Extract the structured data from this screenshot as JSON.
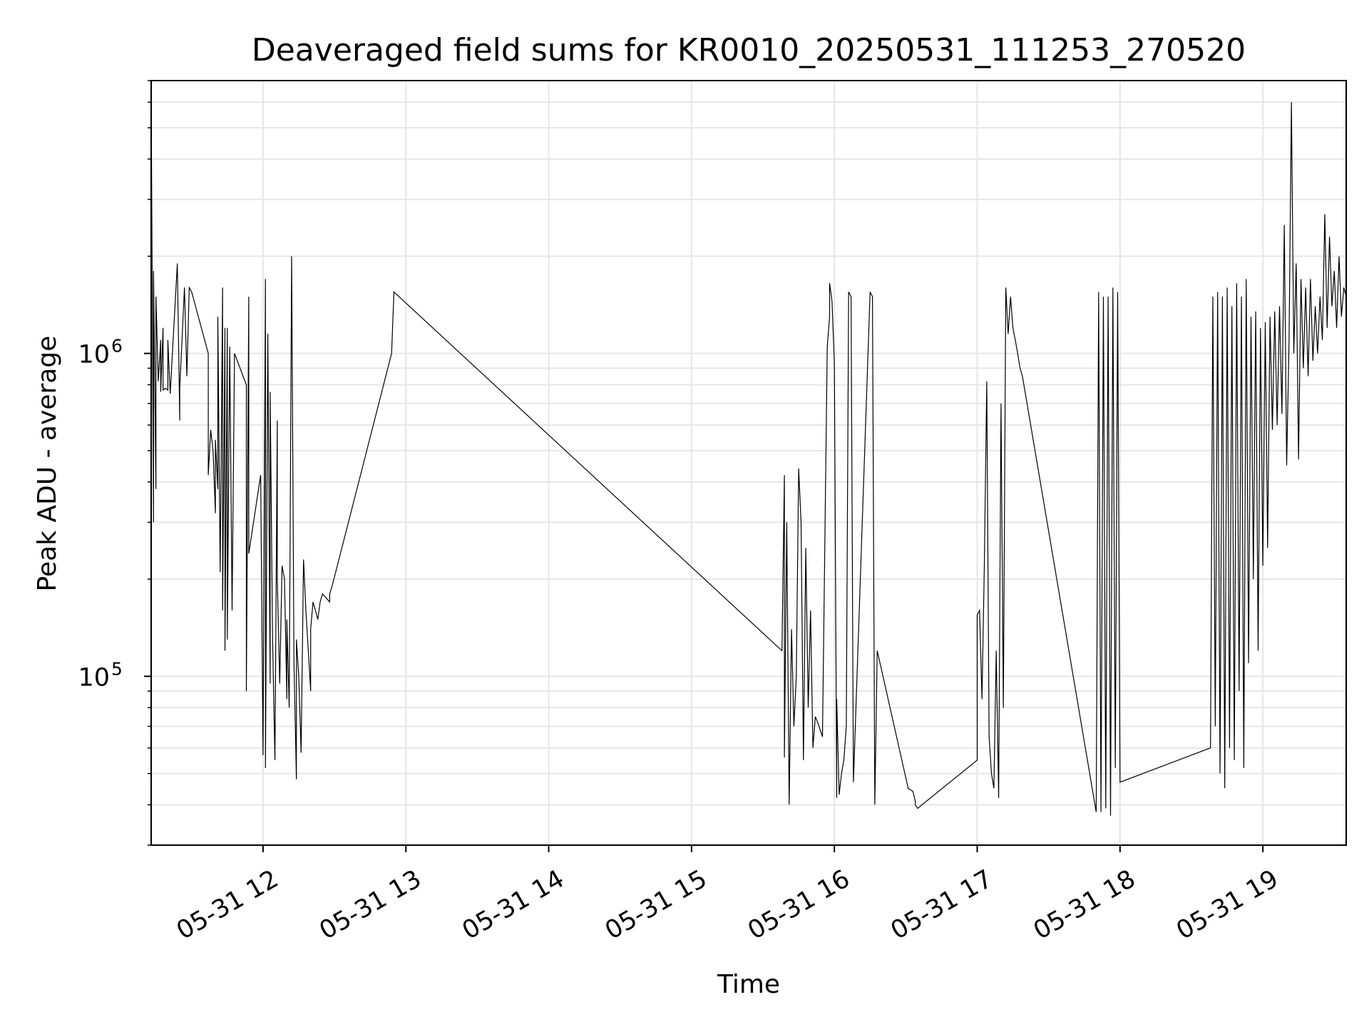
{
  "chart_data": {
    "type": "line",
    "title": "Deaveraged field sums for KR0010_20250531_111253_270520",
    "xlabel": "Time",
    "ylabel": "Peak ADU - average",
    "yscale": "log",
    "ylim": [
      30000,
      7000000
    ],
    "xlim": [
      "2025-05-31 11:13",
      "2025-05-31 19:35"
    ],
    "grid": true,
    "line_color": "#000000",
    "grid_color": "#e6e6e6",
    "x_ticks": [
      {
        "time": "2025-05-31 12:00",
        "label": "05-31 12"
      },
      {
        "time": "2025-05-31 13:00",
        "label": "05-31 13"
      },
      {
        "time": "2025-05-31 14:00",
        "label": "05-31 14"
      },
      {
        "time": "2025-05-31 15:00",
        "label": "05-31 15"
      },
      {
        "time": "2025-05-31 16:00",
        "label": "05-31 16"
      },
      {
        "time": "2025-05-31 17:00",
        "label": "05-31 17"
      },
      {
        "time": "2025-05-31 18:00",
        "label": "05-31 18"
      },
      {
        "time": "2025-05-31 19:00",
        "label": "05-31 19"
      }
    ],
    "y_ticks": [
      {
        "value": 100000,
        "base": "10",
        "exp": "5"
      },
      {
        "value": 1000000,
        "base": "10",
        "exp": "6"
      }
    ],
    "series": [
      {
        "x": [
          "2025-05-31 11:13",
          "2025-05-31 11:13",
          "2025-05-31 11:14",
          "2025-05-31 11:14",
          "2025-05-31 11:15",
          "2025-05-31 11:15",
          "2025-05-31 11:16",
          "2025-05-31 11:17",
          "2025-05-31 11:17",
          "2025-05-31 11:18",
          "2025-05-31 11:18",
          "2025-05-31 11:19",
          "2025-05-31 11:20",
          "2025-05-31 11:20",
          "2025-05-31 11:21",
          "2025-05-31 11:24",
          "2025-05-31 11:25",
          "2025-05-31 11:25",
          "2025-05-31 11:27",
          "2025-05-31 11:28",
          "2025-05-31 11:29",
          "2025-05-31 11:30",
          "2025-05-31 11:37",
          "2025-05-31 11:37",
          "2025-05-31 11:38",
          "2025-05-31 11:39",
          "2025-05-31 11:40",
          "2025-05-31 11:40",
          "2025-05-31 11:41",
          "2025-05-31 11:41",
          "2025-05-31 11:42",
          "2025-05-31 11:43",
          "2025-05-31 11:43",
          "2025-05-31 11:44",
          "2025-05-31 11:44",
          "2025-05-31 11:45",
          "2025-05-31 11:45",
          "2025-05-31 11:46",
          "2025-05-31 11:47",
          "2025-05-31 11:48",
          "2025-05-31 11:53",
          "2025-05-31 11:53",
          "2025-05-31 11:54",
          "2025-05-31 11:54",
          "2025-05-31 11:59",
          "2025-05-31 12:00",
          "2025-05-31 12:01",
          "2025-05-31 12:01",
          "2025-05-31 12:02",
          "2025-05-31 12:03",
          "2025-05-31 12:03",
          "2025-05-31 12:04",
          "2025-05-31 12:05",
          "2025-05-31 12:06",
          "2025-05-31 12:06",
          "2025-05-31 12:07",
          "2025-05-31 12:08",
          "2025-05-31 12:09",
          "2025-05-31 12:10",
          "2025-05-31 12:10",
          "2025-05-31 12:11",
          "2025-05-31 12:12",
          "2025-05-31 12:13",
          "2025-05-31 12:14",
          "2025-05-31 12:14",
          "2025-05-31 12:15",
          "2025-05-31 12:16",
          "2025-05-31 12:17",
          "2025-05-31 12:18",
          "2025-05-31 12:19",
          "2025-05-31 12:20",
          "2025-05-31 12:20",
          "2025-05-31 12:21",
          "2025-05-31 12:22",
          "2025-05-31 12:23",
          "2025-05-31 12:24",
          "2025-05-31 12:25",
          "2025-05-31 12:28",
          "2025-05-31 12:28",
          "2025-05-31 12:29",
          "2025-05-31 12:54",
          "2025-05-31 12:55",
          "2025-05-31 15:38",
          "2025-05-31 15:39",
          "2025-05-31 15:39",
          "2025-05-31 15:40",
          "2025-05-31 15:41",
          "2025-05-31 15:42",
          "2025-05-31 15:43",
          "2025-05-31 15:44",
          "2025-05-31 15:45",
          "2025-05-31 15:46",
          "2025-05-31 15:47",
          "2025-05-31 15:48",
          "2025-05-31 15:49",
          "2025-05-31 15:50",
          "2025-05-31 15:51",
          "2025-05-31 15:52",
          "2025-05-31 15:53",
          "2025-05-31 15:55",
          "2025-05-31 15:57",
          "2025-05-31 15:58",
          "2025-05-31 15:58",
          "2025-05-31 15:59",
          "2025-05-31 16:00",
          "2025-05-31 16:01",
          "2025-05-31 16:01",
          "2025-05-31 16:02",
          "2025-05-31 16:03",
          "2025-05-31 16:04",
          "2025-05-31 16:05",
          "2025-05-31 16:06",
          "2025-05-31 16:07",
          "2025-05-31 16:08",
          "2025-05-31 16:15",
          "2025-05-31 16:16",
          "2025-05-31 16:17",
          "2025-05-31 16:18",
          "2025-05-31 16:31",
          "2025-05-31 16:33",
          "2025-05-31 16:34",
          "2025-05-31 16:34",
          "2025-05-31 16:35",
          "2025-05-31 17:00",
          "2025-05-31 17:00",
          "2025-05-31 17:01",
          "2025-05-31 17:02",
          "2025-05-31 17:03",
          "2025-05-31 17:04",
          "2025-05-31 17:05",
          "2025-05-31 17:06",
          "2025-05-31 17:07",
          "2025-05-31 17:08",
          "2025-05-31 17:09",
          "2025-05-31 17:10",
          "2025-05-31 17:11",
          "2025-05-31 17:12",
          "2025-05-31 17:13",
          "2025-05-31 17:14",
          "2025-05-31 17:15",
          "2025-05-31 17:16",
          "2025-05-31 17:17",
          "2025-05-31 17:18",
          "2025-05-31 17:19",
          "2025-05-31 17:50",
          "2025-05-31 17:51",
          "2025-05-31 17:52",
          "2025-05-31 17:53",
          "2025-05-31 17:54",
          "2025-05-31 17:55",
          "2025-05-31 17:56",
          "2025-05-31 17:57",
          "2025-05-31 17:58",
          "2025-05-31 17:59",
          "2025-05-31 18:00",
          "2025-05-31 18:00",
          "2025-05-31 18:38",
          "2025-05-31 18:39",
          "2025-05-31 18:40",
          "2025-05-31 18:41",
          "2025-05-31 18:42",
          "2025-05-31 18:43",
          "2025-05-31 18:44",
          "2025-05-31 18:45",
          "2025-05-31 18:46",
          "2025-05-31 18:47",
          "2025-05-31 18:48",
          "2025-05-31 18:49",
          "2025-05-31 18:50",
          "2025-05-31 18:51",
          "2025-05-31 18:52",
          "2025-05-31 18:53",
          "2025-05-31 18:54",
          "2025-05-31 18:55",
          "2025-05-31 18:56",
          "2025-05-31 18:57",
          "2025-05-31 18:58",
          "2025-05-31 18:59",
          "2025-05-31 19:00",
          "2025-05-31 19:01",
          "2025-05-31 19:02",
          "2025-05-31 19:03",
          "2025-05-31 19:04",
          "2025-05-31 19:05",
          "2025-05-31 19:06",
          "2025-05-31 19:07",
          "2025-05-31 19:08",
          "2025-05-31 19:09",
          "2025-05-31 19:10",
          "2025-05-31 19:11",
          "2025-05-31 19:12",
          "2025-05-31 19:13",
          "2025-05-31 19:14",
          "2025-05-31 19:15",
          "2025-05-31 19:16",
          "2025-05-31 19:17",
          "2025-05-31 19:18",
          "2025-05-31 19:19",
          "2025-05-31 19:20",
          "2025-05-31 19:21",
          "2025-05-31 19:22",
          "2025-05-31 19:23",
          "2025-05-31 19:24",
          "2025-05-31 19:25",
          "2025-05-31 19:26",
          "2025-05-31 19:27",
          "2025-05-31 19:28",
          "2025-05-31 19:29",
          "2025-05-31 19:30",
          "2025-05-31 19:31",
          "2025-05-31 19:32",
          "2025-05-31 19:33",
          "2025-05-31 19:34",
          "2025-05-31 19:35"
        ],
        "y": [
          260000,
          6500000,
          300000,
          1800000,
          380000,
          1500000,
          820000,
          1100000,
          760000,
          1200000,
          770000,
          780000,
          770000,
          1100000,
          750000,
          1900000,
          620000,
          780000,
          1600000,
          850000,
          1600000,
          1550000,
          1000000,
          420000,
          580000,
          500000,
          320000,
          540000,
          380000,
          1300000,
          210000,
          1600000,
          160000,
          1200000,
          120000,
          1200000,
          130000,
          1050000,
          160000,
          1000000,
          800000,
          90000,
          1500000,
          240000,
          420000,
          57000,
          1700000,
          52000,
          1150000,
          95000,
          760000,
          130000,
          55000,
          620000,
          200000,
          95000,
          220000,
          200000,
          85000,
          150000,
          80000,
          2000000,
          110000,
          48000,
          130000,
          100000,
          58000,
          230000,
          160000,
          120000,
          90000,
          140000,
          170000,
          160000,
          150000,
          170000,
          180000,
          170000,
          180000,
          190000,
          1000000,
          1550000,
          120000,
          420000,
          56000,
          300000,
          40000,
          140000,
          70000,
          100000,
          440000,
          300000,
          55000,
          250000,
          80000,
          160000,
          60000,
          75000,
          72000,
          65000,
          1050000,
          1300000,
          1650000,
          1450000,
          930000,
          42000,
          85000,
          43000,
          50000,
          55000,
          70000,
          1550000,
          1500000,
          47000,
          1550000,
          1500000,
          40000,
          120000,
          45000,
          44000,
          41000,
          40000,
          39000,
          55000,
          155000,
          160000,
          85000,
          220000,
          820000,
          65000,
          50000,
          45000,
          120000,
          42000,
          700000,
          80000,
          1600000,
          1150000,
          1500000,
          1200000,
          1100000,
          1000000,
          900000,
          850000,
          38000,
          1550000,
          38000,
          1500000,
          39000,
          1500000,
          37000,
          1600000,
          52000,
          1550000,
          48000,
          47000,
          60000,
          1500000,
          70000,
          1550000,
          50000,
          1500000,
          45000,
          1600000,
          60000,
          1400000,
          55000,
          1650000,
          90000,
          1500000,
          52000,
          1700000,
          110000,
          1300000,
          200000,
          1350000,
          120000,
          1200000,
          220000,
          1250000,
          250000,
          1300000,
          580000,
          1350000,
          600000,
          1400000,
          650000,
          2500000,
          450000,
          1100000,
          6000000,
          1000000,
          1900000,
          470000,
          1700000,
          900000,
          1600000,
          850000,
          1700000,
          950000,
          1400000,
          1000000,
          1500000,
          1100000,
          2700000,
          1200000,
          2300000,
          1400000,
          1800000,
          1200000,
          2000000,
          1300000,
          1600000,
          1500000
        ]
      }
    ]
  }
}
